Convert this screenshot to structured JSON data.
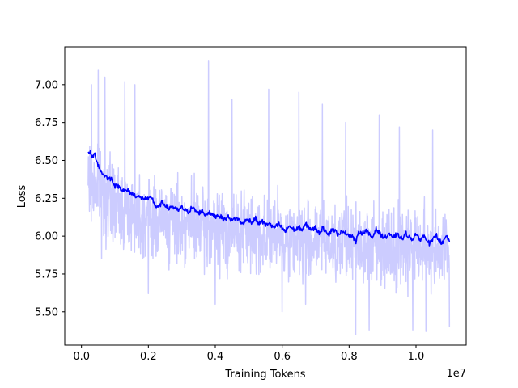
{
  "chart_data": {
    "type": "line",
    "xlabel": "Training Tokens",
    "ylabel": "Loss",
    "x_offset_label": "1e7",
    "x_scale": 10000000,
    "xlim": [
      -0.05,
      1.15
    ],
    "ylim": [
      5.28,
      7.25
    ],
    "x_ticks": [
      0.0,
      0.2,
      0.4,
      0.6,
      0.8,
      1.0
    ],
    "x_tick_labels": [
      "0.0",
      "0.2",
      "0.4",
      "0.6",
      "0.8",
      "1.0"
    ],
    "y_ticks": [
      5.5,
      5.75,
      6.0,
      6.25,
      6.5,
      6.75,
      7.0
    ],
    "y_tick_labels": [
      "5.50",
      "5.75",
      "6.00",
      "6.25",
      "6.50",
      "6.75",
      "7.00"
    ],
    "grid": false,
    "series": [
      {
        "role": "raw",
        "color": "#ccccff",
        "x_range": [
          0.02,
          1.1
        ],
        "center": [
          [
            0.02,
            6.35
          ],
          [
            0.05,
            6.33
          ],
          [
            0.1,
            6.2
          ],
          [
            0.2,
            6.13
          ],
          [
            0.3,
            6.08
          ],
          [
            0.4,
            6.04
          ],
          [
            0.5,
            6.02
          ],
          [
            0.6,
            5.99
          ],
          [
            0.7,
            5.97
          ],
          [
            0.8,
            5.95
          ],
          [
            0.9,
            5.94
          ],
          [
            1.0,
            5.93
          ],
          [
            1.1,
            5.92
          ]
        ],
        "spread": 0.38,
        "peaks": [
          [
            0.03,
            7.0
          ],
          [
            0.05,
            7.1
          ],
          [
            0.07,
            7.05
          ],
          [
            0.13,
            7.02
          ],
          [
            0.16,
            7.0
          ],
          [
            0.38,
            7.16
          ],
          [
            0.45,
            6.9
          ],
          [
            0.56,
            6.97
          ],
          [
            0.65,
            6.95
          ],
          [
            0.72,
            6.87
          ],
          [
            0.79,
            6.75
          ],
          [
            0.89,
            6.8
          ],
          [
            0.95,
            6.72
          ],
          [
            1.05,
            6.7
          ]
        ],
        "troughs": [
          [
            0.06,
            5.85
          ],
          [
            0.2,
            5.62
          ],
          [
            0.4,
            5.55
          ],
          [
            0.6,
            5.5
          ],
          [
            0.67,
            5.55
          ],
          [
            0.82,
            5.35
          ],
          [
            0.86,
            5.38
          ],
          [
            0.99,
            5.38
          ],
          [
            1.03,
            5.37
          ],
          [
            1.1,
            5.4
          ]
        ]
      },
      {
        "role": "smoothed",
        "color": "#0000ff",
        "points": [
          [
            0.02,
            6.55
          ],
          [
            0.025,
            6.56
          ],
          [
            0.03,
            6.52
          ],
          [
            0.04,
            6.54
          ],
          [
            0.05,
            6.47
          ],
          [
            0.06,
            6.42
          ],
          [
            0.07,
            6.4
          ],
          [
            0.08,
            6.38
          ],
          [
            0.09,
            6.38
          ],
          [
            0.1,
            6.33
          ],
          [
            0.11,
            6.33
          ],
          [
            0.12,
            6.31
          ],
          [
            0.13,
            6.3
          ],
          [
            0.14,
            6.3
          ],
          [
            0.15,
            6.28
          ],
          [
            0.16,
            6.27
          ],
          [
            0.17,
            6.26
          ],
          [
            0.18,
            6.25
          ],
          [
            0.19,
            6.25
          ],
          [
            0.2,
            6.24
          ],
          [
            0.21,
            6.26
          ],
          [
            0.22,
            6.2
          ],
          [
            0.23,
            6.19
          ],
          [
            0.24,
            6.22
          ],
          [
            0.25,
            6.21
          ],
          [
            0.26,
            6.18
          ],
          [
            0.27,
            6.2
          ],
          [
            0.28,
            6.18
          ],
          [
            0.29,
            6.17
          ],
          [
            0.3,
            6.19
          ],
          [
            0.31,
            6.17
          ],
          [
            0.32,
            6.16
          ],
          [
            0.33,
            6.19
          ],
          [
            0.34,
            6.17
          ],
          [
            0.35,
            6.15
          ],
          [
            0.36,
            6.17
          ],
          [
            0.37,
            6.14
          ],
          [
            0.38,
            6.16
          ],
          [
            0.39,
            6.14
          ],
          [
            0.4,
            6.13
          ],
          [
            0.41,
            6.14
          ],
          [
            0.42,
            6.12
          ],
          [
            0.43,
            6.11
          ],
          [
            0.44,
            6.13
          ],
          [
            0.45,
            6.1
          ],
          [
            0.46,
            6.12
          ],
          [
            0.47,
            6.11
          ],
          [
            0.48,
            6.08
          ],
          [
            0.49,
            6.1
          ],
          [
            0.5,
            6.11
          ],
          [
            0.51,
            6.09
          ],
          [
            0.52,
            6.12
          ],
          [
            0.53,
            6.08
          ],
          [
            0.54,
            6.1
          ],
          [
            0.55,
            6.07
          ],
          [
            0.56,
            6.09
          ],
          [
            0.57,
            6.06
          ],
          [
            0.58,
            6.06
          ],
          [
            0.59,
            6.08
          ],
          [
            0.6,
            6.05
          ],
          [
            0.61,
            6.03
          ],
          [
            0.62,
            6.07
          ],
          [
            0.63,
            6.05
          ],
          [
            0.64,
            6.04
          ],
          [
            0.65,
            6.06
          ],
          [
            0.66,
            6.04
          ],
          [
            0.67,
            6.08
          ],
          [
            0.68,
            6.06
          ],
          [
            0.69,
            6.04
          ],
          [
            0.7,
            6.06
          ],
          [
            0.71,
            6.02
          ],
          [
            0.72,
            6.05
          ],
          [
            0.73,
            6.04
          ],
          [
            0.74,
            6.01
          ],
          [
            0.75,
            6.05
          ],
          [
            0.76,
            6.03
          ],
          [
            0.77,
            6.0
          ],
          [
            0.78,
            6.04
          ],
          [
            0.79,
            6.02
          ],
          [
            0.8,
            6.01
          ],
          [
            0.81,
            6.0
          ],
          [
            0.82,
            5.96
          ],
          [
            0.83,
            6.03
          ],
          [
            0.84,
            6.02
          ],
          [
            0.85,
            6.04
          ],
          [
            0.86,
            6.01
          ],
          [
            0.87,
            5.99
          ],
          [
            0.88,
            6.05
          ],
          [
            0.89,
            6.02
          ],
          [
            0.9,
            6.0
          ],
          [
            0.91,
            5.99
          ],
          [
            0.92,
            6.02
          ],
          [
            0.93,
            5.98
          ],
          [
            0.94,
            6.01
          ],
          [
            0.95,
            6.0
          ],
          [
            0.96,
            5.98
          ],
          [
            0.97,
            6.02
          ],
          [
            0.98,
            5.99
          ],
          [
            0.99,
            5.98
          ],
          [
            1.0,
            6.02
          ],
          [
            1.01,
            5.97
          ],
          [
            1.02,
            6.0
          ],
          [
            1.03,
            5.99
          ],
          [
            1.04,
            5.95
          ],
          [
            1.05,
            5.97
          ],
          [
            1.06,
            6.01
          ],
          [
            1.07,
            5.97
          ],
          [
            1.08,
            5.95
          ],
          [
            1.09,
            6.0
          ],
          [
            1.1,
            5.97
          ]
        ]
      }
    ]
  }
}
